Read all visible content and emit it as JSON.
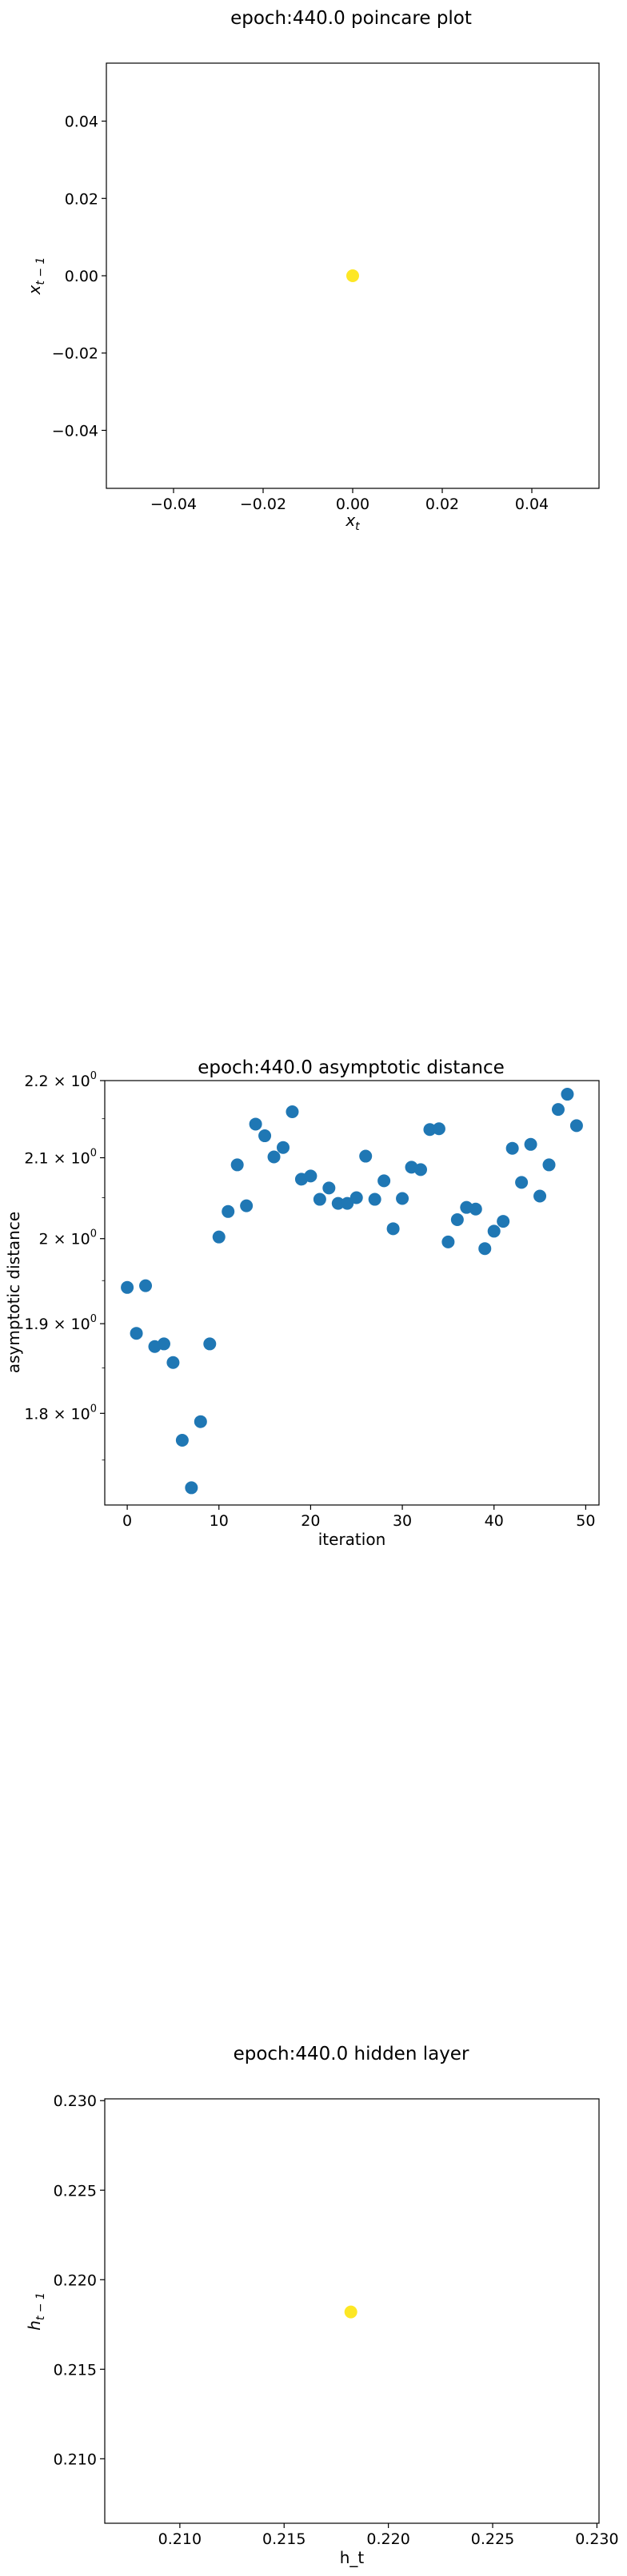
{
  "chart_data": [
    {
      "type": "scatter",
      "title": "epoch:440.0 poincare plot",
      "xlabel": "x",
      "xlabel_sub": "t",
      "ylabel": "x",
      "ylabel_sub": "t − 1",
      "xlim": [
        -0.055,
        0.055
      ],
      "ylim": [
        -0.055,
        0.055
      ],
      "xticks": [
        -0.04,
        -0.02,
        0.0,
        0.02,
        0.04
      ],
      "xtick_labels": [
        "−0.04",
        "−0.02",
        "0.00",
        "0.02",
        "0.04"
      ],
      "yticks": [
        0.04,
        0.02,
        0.0,
        -0.02,
        -0.04
      ],
      "ytick_labels": [
        "0.04",
        "0.02",
        "0.00",
        "−0.02",
        "−0.04"
      ],
      "points": [
        {
          "x": 0.0,
          "y": 0.0
        }
      ],
      "color": "#fde725"
    },
    {
      "type": "scatter",
      "title": "epoch:440.0 asymptotic distance",
      "xlabel": "iteration",
      "ylabel": "asymptotic distance",
      "yscale": "log",
      "xlim": [
        -2.45,
        51.45
      ],
      "ylim": [
        1.7032,
        2.2
      ],
      "xticks": [
        0,
        10,
        20,
        30,
        40,
        50
      ],
      "xtick_labels": [
        "0",
        "10",
        "20",
        "30",
        "40",
        "50"
      ],
      "yticks": [
        2.2,
        2.1,
        2.0,
        1.9,
        1.8
      ],
      "ytick_labels": [
        {
          "base": "2.2 × 10",
          "exp": "0"
        },
        {
          "base": "2.1 × 10",
          "exp": "0"
        },
        {
          "base": "2 × 10",
          "exp": "0"
        },
        {
          "base": "1.9 × 10",
          "exp": "0"
        },
        {
          "base": "1.8 × 10",
          "exp": "0"
        }
      ],
      "x": [
        0,
        1,
        2,
        3,
        4,
        5,
        6,
        7,
        8,
        9,
        10,
        11,
        12,
        13,
        14,
        15,
        16,
        17,
        18,
        19,
        20,
        21,
        22,
        23,
        24,
        25,
        26,
        27,
        28,
        29,
        30,
        31,
        32,
        33,
        34,
        35,
        36,
        37,
        38,
        39,
        40,
        41,
        42,
        43,
        44,
        45,
        46,
        47,
        48,
        49
      ],
      "y": [
        1.942,
        1.889,
        1.944,
        1.874,
        1.877,
        1.856,
        1.771,
        1.721,
        1.791,
        1.877,
        2.002,
        2.033,
        2.091,
        2.04,
        2.143,
        2.128,
        2.101,
        2.113,
        2.159,
        2.073,
        2.077,
        2.048,
        2.062,
        2.043,
        2.043,
        2.05,
        2.102,
        2.048,
        2.071,
        2.012,
        2.049,
        2.088,
        2.085,
        2.136,
        2.137,
        1.996,
        2.023,
        2.038,
        2.036,
        1.988,
        2.009,
        2.021,
        2.112,
        2.069,
        2.117,
        2.052,
        2.091,
        2.162,
        2.182,
        2.141
      ],
      "color": "#1f77b4"
    },
    {
      "type": "scatter",
      "title": "epoch:440.0 hidden layer",
      "xlabel": "h_t",
      "ylabel": "h",
      "ylabel_sub": "t − 1",
      "xlim": [
        0.2064,
        0.2301
      ],
      "ylim": [
        0.2064,
        0.2301
      ],
      "xticks": [
        0.21,
        0.215,
        0.22,
        0.225,
        0.23
      ],
      "xtick_labels": [
        "0.210",
        "0.215",
        "0.220",
        "0.225",
        "0.230"
      ],
      "yticks": [
        0.23,
        0.225,
        0.22,
        0.215,
        0.21
      ],
      "ytick_labels": [
        "0.230",
        "0.225",
        "0.220",
        "0.215",
        "0.210"
      ],
      "points": [
        {
          "x": 0.2182,
          "y": 0.2182
        }
      ],
      "color": "#fde725"
    }
  ]
}
